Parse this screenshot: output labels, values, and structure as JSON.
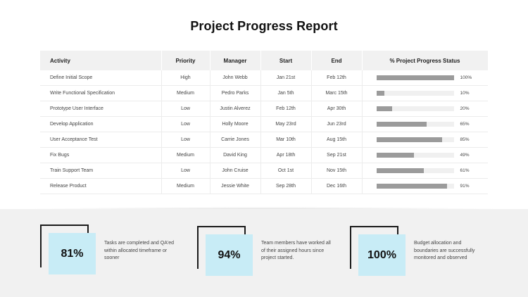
{
  "title": "Project Progress Report",
  "table": {
    "headers": [
      "Activity",
      "Priority",
      "Manager",
      "Start",
      "End",
      "% Project Progress Status"
    ],
    "rows": [
      {
        "activity": "Define Initial Scope",
        "priority": "High",
        "manager": "John Webb",
        "start": "Jan 21st",
        "end": "Feb 12th",
        "progress": 100,
        "progress_label": "100%"
      },
      {
        "activity": "Write Functional Specification",
        "priority": "Medium",
        "manager": "Pedro Parks",
        "start": "Jan 5th",
        "end": "Marc 15th",
        "progress": 10,
        "progress_label": "10%"
      },
      {
        "activity": "Prototype User Interface",
        "priority": "Low",
        "manager": "Justin Alverez",
        "start": "Feb 12th",
        "end": "Apr 30th",
        "progress": 20,
        "progress_label": "20%"
      },
      {
        "activity": "Develop Application",
        "priority": "Low",
        "manager": "Holly Moore",
        "start": "May 23rd",
        "end": "Jun 23rd",
        "progress": 65,
        "progress_label": "65%"
      },
      {
        "activity": "User Acceptance Test",
        "priority": "Low",
        "manager": "Carrie Jones",
        "start": "Mar 10th",
        "end": "Aug 15th",
        "progress": 85,
        "progress_label": "85%"
      },
      {
        "activity": "Fix Bugs",
        "priority": "Medium",
        "manager": "David King",
        "start": "Apr 18th",
        "end": "Sep 21st",
        "progress": 49,
        "progress_label": "49%"
      },
      {
        "activity": "Train Support Team",
        "priority": "Low",
        "manager": "John Cruise",
        "start": "Oct 1st",
        "end": "Nov 15th",
        "progress": 61,
        "progress_label": "61%"
      },
      {
        "activity": "Release Product",
        "priority": "Medium",
        "manager": "Jessie White",
        "start": "Sep 28th",
        "end": "Dec 16th",
        "progress": 91,
        "progress_label": "91%"
      }
    ]
  },
  "kpis": [
    {
      "value": "81%",
      "text": "Tasks are completed and QA'ed within allocated timeframe or sooner"
    },
    {
      "value": "94%",
      "text": "Team members have worked all of their assigned hours since project started."
    },
    {
      "value": "100%",
      "text": "Budget allocation and boundaries are successfully monitored and observed"
    }
  ],
  "colors": {
    "accent_box": "#c8ecf6",
    "bar_fill": "#9b9b9b",
    "bar_track": "#f0f0f0",
    "footer_bg": "#f1f1f1"
  }
}
